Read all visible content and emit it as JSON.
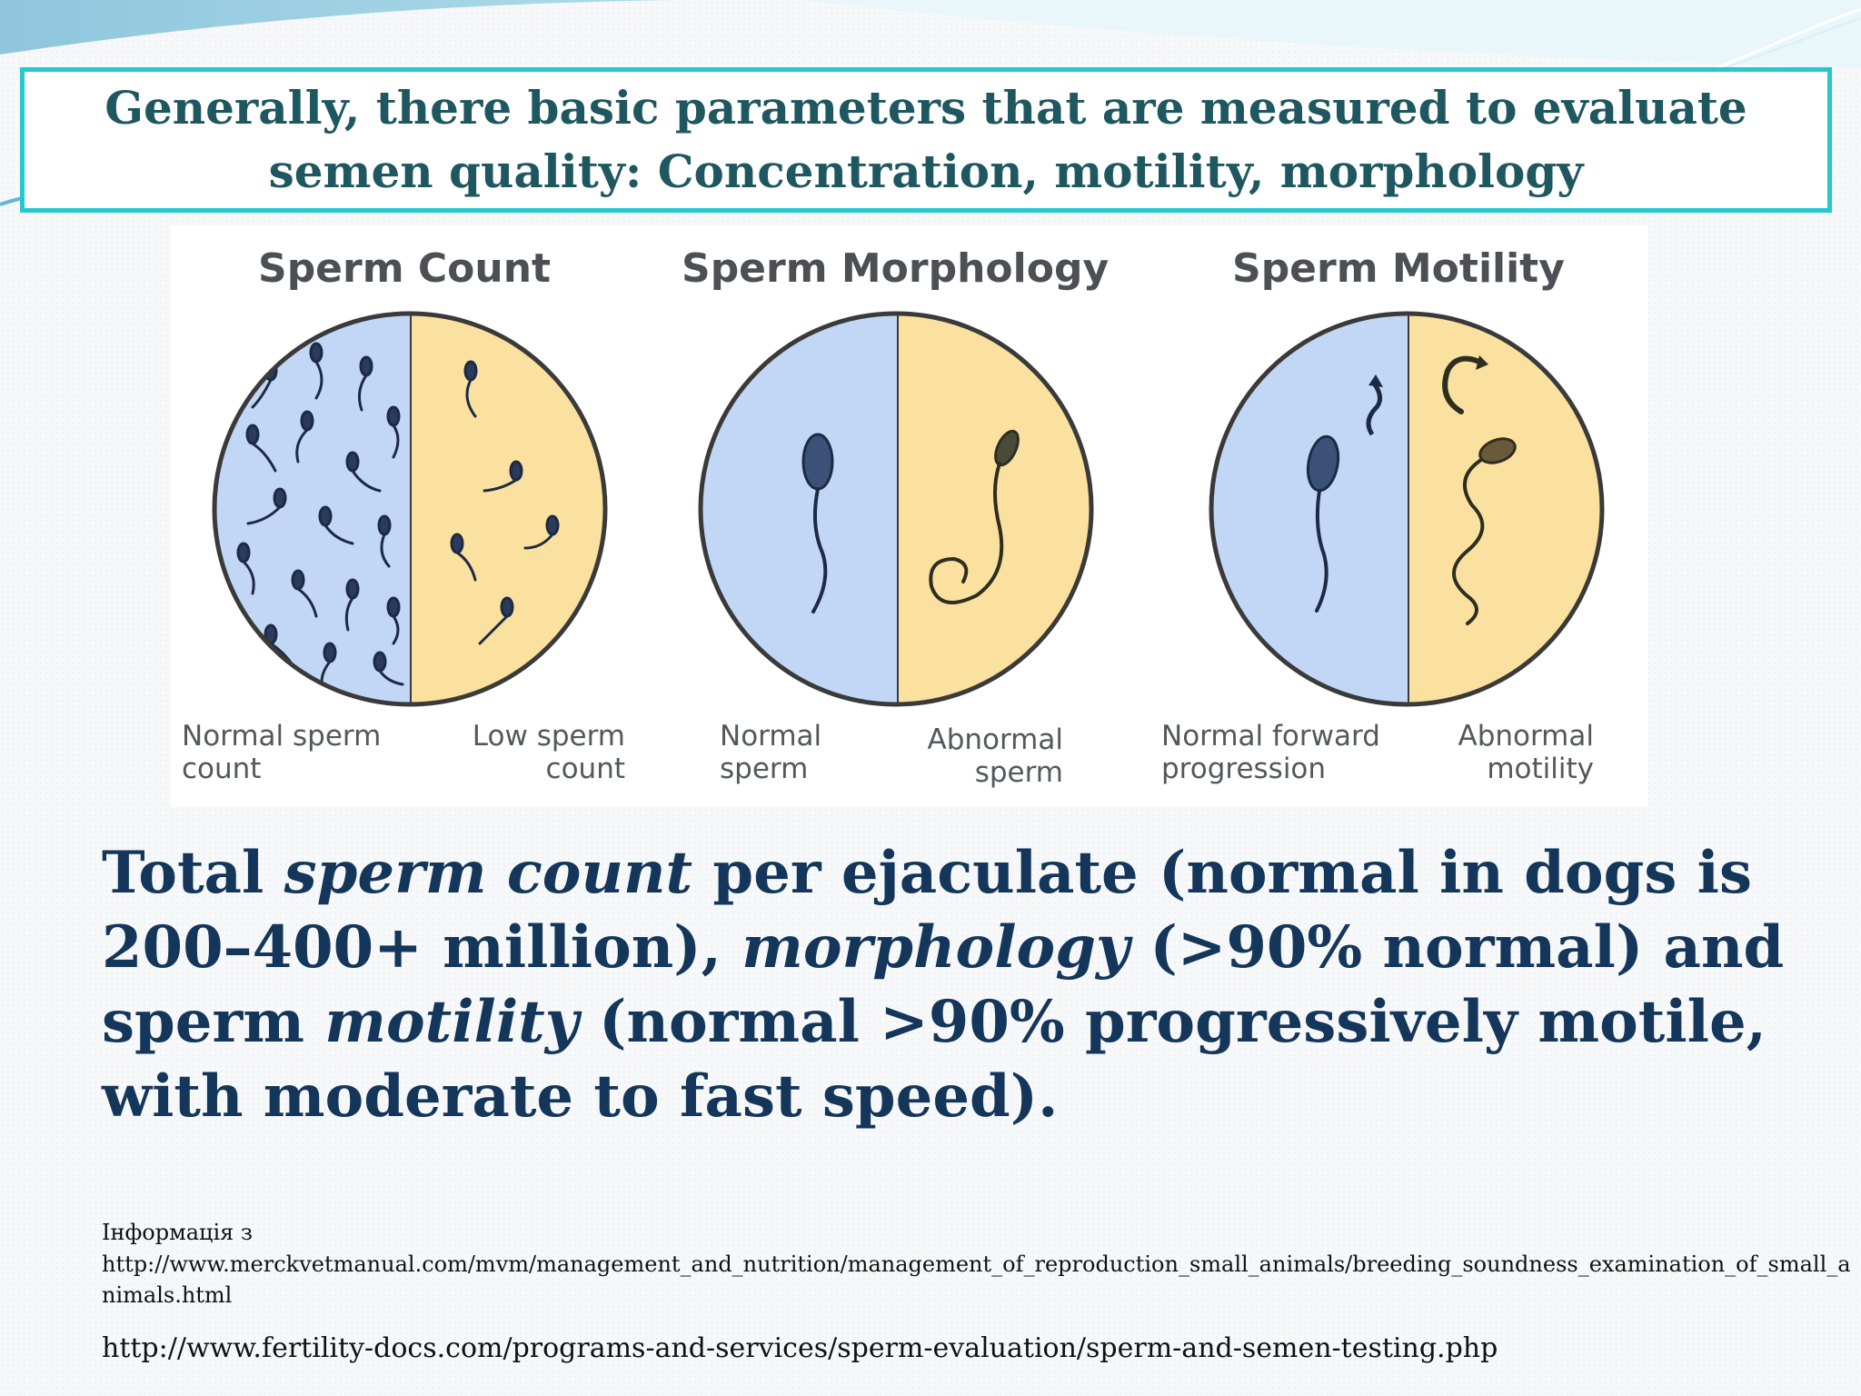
{
  "slide": {
    "title": "Generally, there basic parameters that are measured to evaluate semen quality: Concentration, motility, morphology"
  },
  "figure": {
    "panels": [
      {
        "title": "Sperm Count",
        "left_caption": "Normal sperm count",
        "right_caption": "Low sperm count"
      },
      {
        "title": "Sperm Morphology",
        "left_caption": "Normal sperm",
        "right_caption": "Abnormal sperm"
      },
      {
        "title": "Sperm Motility",
        "left_caption": "Normal forward progression",
        "right_caption": "Abnormal motility"
      }
    ],
    "colors": {
      "normal_half": "#c2d6f5",
      "abnormal_half": "#fbe1a0",
      "outline": "#3a3a3a"
    }
  },
  "body": {
    "p1": "Total ",
    "p2": "sperm count",
    "p3": " per ejaculate (normal in dogs is 200–400+ million), ",
    "p4": "morphology",
    "p5": " (>90% normal) and sperm ",
    "p6": "motility",
    "p7": " (normal >90% progressively motile, with moderate to fast speed)."
  },
  "sources": {
    "label": "Інформація з",
    "url1": "http://www.merckvetmanual.com/mvm/management_and_nutrition/management_of_reproduction_small_animals/breeding_soundness_examination_of_small_animals.html",
    "url2": "http://www.fertility-docs.com/programs-and-services/sperm-evaluation/sperm-and-semen-testing.php"
  }
}
